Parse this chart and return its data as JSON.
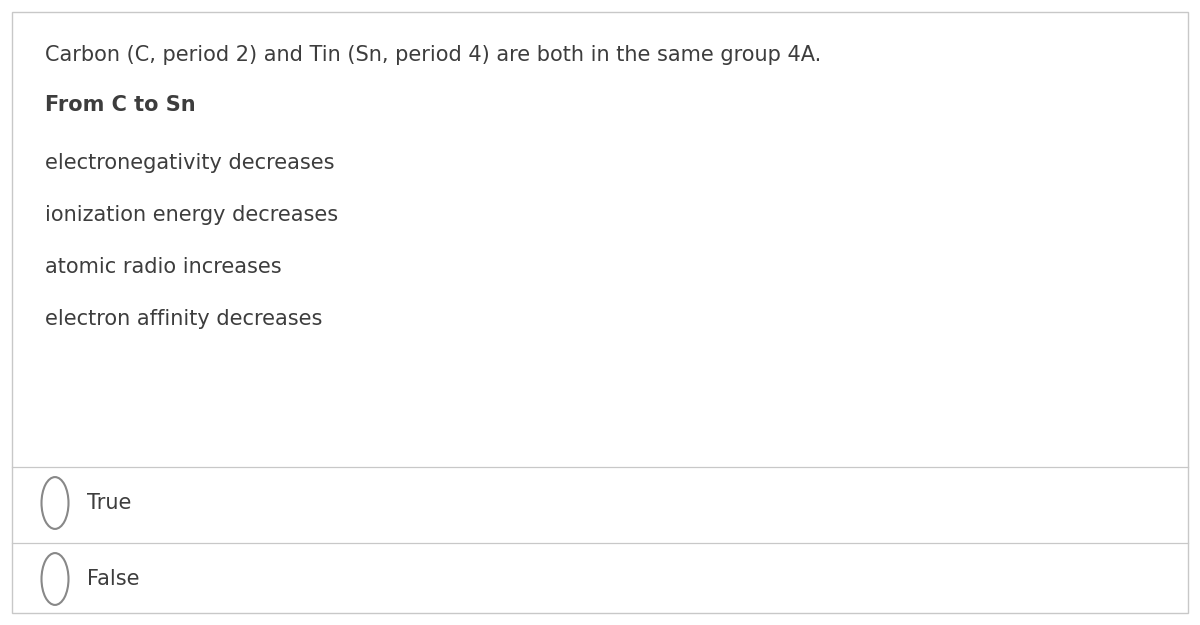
{
  "background_color": "#ffffff",
  "border_color": "#c8c8c8",
  "intro_text": "Carbon (C, period 2) and Tin (Sn, period 4) are both in the same group 4A.",
  "bold_text": "From C to Sn",
  "bullet_items": [
    "electronegativity decreases",
    "ionization energy decreases",
    "atomic radio increases",
    "electron affinity decreases"
  ],
  "options": [
    "True",
    "False"
  ],
  "text_color": "#3d3d3d",
  "line_color": "#c8c8c8",
  "intro_fontsize": 15,
  "bold_fontsize": 15,
  "bullet_fontsize": 15,
  "option_fontsize": 15,
  "circle_color": "#888888",
  "circle_linewidth": 1.5
}
